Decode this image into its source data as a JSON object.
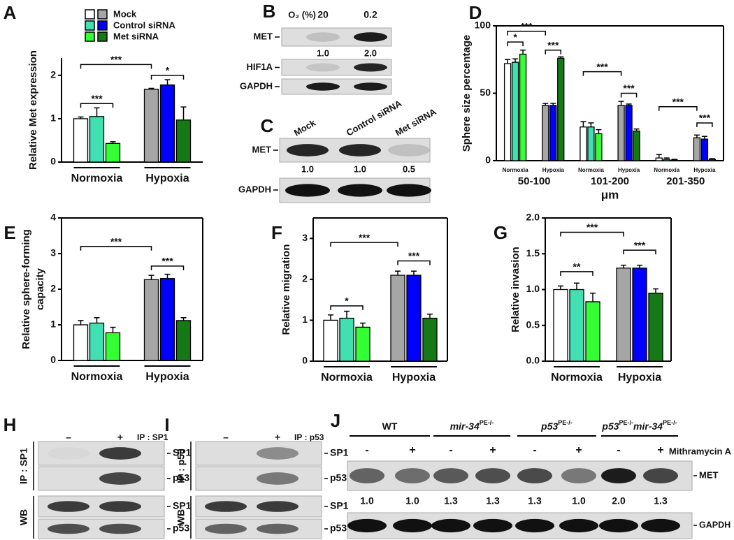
{
  "chart_data": [
    {
      "type": "bar",
      "panel": "A",
      "ylabel": "Relative Met expression",
      "categories": [
        "Normoxia",
        "Hypoxia"
      ],
      "series": [
        {
          "name": "Mock",
          "colors": [
            "#ffffff",
            "#a6a6a6"
          ],
          "values": [
            1.0,
            1.68
          ],
          "errors": [
            0.04,
            0.02
          ]
        },
        {
          "name": "Control siRNA",
          "colors": [
            "#40e0b0",
            "#0000ff"
          ],
          "values": [
            1.05,
            1.78
          ],
          "errors": [
            0.2,
            0.12
          ]
        },
        {
          "name": "Met siRNA",
          "colors": [
            "#33ff33",
            "#157a15"
          ],
          "values": [
            0.43,
            0.97
          ],
          "errors": [
            0.04,
            0.3
          ]
        }
      ],
      "ylim": [
        0,
        2.4
      ],
      "yticks": [
        0,
        1,
        2
      ],
      "annotations": [
        "***",
        "***",
        "*"
      ],
      "legend": "top"
    },
    {
      "type": "bar",
      "panel": "D",
      "ylabel": "Sphere size percentage",
      "categories": [
        "Normoxia",
        "Hypoxia",
        "Normoxia",
        "Hypoxia",
        "Normoxia",
        "Hypoxia"
      ],
      "group_labels": [
        "50-100",
        "101-200",
        "201-350"
      ],
      "xlabel": "μm",
      "series": [
        {
          "colors": [
            "#ffffff",
            "#a6a6a6",
            "#ffffff",
            "#a6a6a6",
            "#ffffff",
            "#a6a6a6"
          ],
          "values": [
            72,
            41,
            25,
            41,
            2,
            17
          ],
          "errors": [
            3,
            1.5,
            4,
            3,
            2.5,
            2
          ]
        },
        {
          "colors": [
            "#40e0b0",
            "#0000ff",
            "#40e0b0",
            "#0000ff",
            "#40e0b0",
            "#0000ff"
          ],
          "values": [
            73,
            41,
            25,
            41,
            1,
            16
          ],
          "errors": [
            2.5,
            1.5,
            3,
            1,
            1,
            2
          ]
        },
        {
          "colors": [
            "#33ff33",
            "#157a15",
            "#33ff33",
            "#157a15",
            "#33ff33",
            "#157a15"
          ],
          "values": [
            79,
            76,
            20,
            22,
            0.5,
            1
          ],
          "errors": [
            3,
            1,
            3,
            1.5,
            0.5,
            0.5
          ]
        }
      ],
      "ylim": [
        0,
        100
      ],
      "yticks": [
        0,
        50,
        100
      ],
      "annotations": [
        "***",
        "*",
        "***",
        "***",
        "***",
        "***",
        "***"
      ]
    },
    {
      "type": "bar",
      "panel": "E",
      "ylabel": [
        "Relative sphere-forming",
        "capacity"
      ],
      "categories": [
        "Normoxia",
        "Hypoxia"
      ],
      "series": [
        {
          "colors": [
            "#ffffff",
            "#a6a6a6"
          ],
          "values": [
            1.0,
            2.27
          ],
          "errors": [
            0.12,
            0.12
          ]
        },
        {
          "colors": [
            "#40e0b0",
            "#0000ff"
          ],
          "values": [
            1.05,
            2.3
          ],
          "errors": [
            0.15,
            0.12
          ]
        },
        {
          "colors": [
            "#33ff33",
            "#157a15"
          ],
          "values": [
            0.78,
            1.12
          ],
          "errors": [
            0.15,
            0.08
          ]
        }
      ],
      "ylim": [
        0,
        4
      ],
      "yticks": [
        0,
        1,
        2,
        3,
        4
      ],
      "annotations": [
        "***",
        "***"
      ]
    },
    {
      "type": "bar",
      "panel": "F",
      "ylabel": "Relative migration",
      "categories": [
        "Normoxia",
        "Hypoxia"
      ],
      "series": [
        {
          "colors": [
            "#ffffff",
            "#a6a6a6"
          ],
          "values": [
            1.0,
            2.1
          ],
          "errors": [
            0.13,
            0.1
          ]
        },
        {
          "colors": [
            "#40e0b0",
            "#0000ff"
          ],
          "values": [
            1.05,
            2.1
          ],
          "errors": [
            0.17,
            0.1
          ]
        },
        {
          "colors": [
            "#33ff33",
            "#157a15"
          ],
          "values": [
            0.83,
            1.05
          ],
          "errors": [
            0.1,
            0.1
          ]
        }
      ],
      "ylim": [
        0,
        3.5
      ],
      "yticks": [
        0,
        1,
        2,
        3
      ],
      "annotations": [
        "*",
        "***",
        "***"
      ]
    },
    {
      "type": "bar",
      "panel": "G",
      "ylabel": "Relative invasion",
      "categories": [
        "Normoxia",
        "Hypoxia"
      ],
      "series": [
        {
          "colors": [
            "#ffffff",
            "#a6a6a6"
          ],
          "values": [
            1.0,
            1.3
          ],
          "errors": [
            0.05,
            0.04
          ]
        },
        {
          "colors": [
            "#40e0b0",
            "#0000ff"
          ],
          "values": [
            1.0,
            1.3
          ],
          "errors": [
            0.09,
            0.04
          ]
        },
        {
          "colors": [
            "#33ff33",
            "#157a15"
          ],
          "values": [
            0.83,
            0.95
          ],
          "errors": [
            0.12,
            0.06
          ]
        }
      ],
      "ylim": [
        0,
        2
      ],
      "yticks": [
        {
          "value": 0,
          "label": "0.0"
        },
        0.5,
        {
          "value": 1,
          "label": "1.0"
        },
        1.5,
        {
          "value": 2,
          "label": "2.0"
        }
      ],
      "annotations": [
        "**",
        "***",
        "***"
      ]
    }
  ],
  "blots": {
    "B": {
      "panel": "B",
      "header": "O₂ (%)",
      "lanes": [
        "20",
        "0.2"
      ],
      "rows": [
        "MET",
        "HIF1A",
        "GAPDH"
      ],
      "ratios": [
        "1.0",
        "2.0"
      ]
    },
    "C": {
      "panel": "C",
      "lanes": [
        "Mock",
        "Control siRNA",
        "Met siRNA"
      ],
      "rows": [
        "MET",
        "GAPDH"
      ],
      "ratios": [
        "1.0",
        "1.0",
        "0.5"
      ]
    },
    "H": {
      "panel": "H",
      "lanes": [
        "–",
        "+"
      ],
      "ip": "IP : SP1",
      "side": [
        "IP : SP1",
        "WB"
      ],
      "rows": [
        "SP1",
        "p53",
        "SP1",
        "p53"
      ]
    },
    "I": {
      "panel": "I",
      "lanes": [
        "–",
        "+"
      ],
      "ip": "IP : p53",
      "side": [
        "IP : p53",
        "WB"
      ],
      "rows": [
        "SP1",
        "p53",
        "SP1",
        "p53"
      ]
    },
    "J": {
      "panel": "J",
      "groups": [
        [
          {
            "text": "WT"
          }
        ],
        [
          {
            "text": "mir-34",
            "italic": true
          },
          {
            "text": "PE-/-",
            "sup": true
          }
        ],
        [
          {
            "text": "p53",
            "italic": true
          },
          {
            "text": "PE-/-",
            "sup": true
          }
        ],
        [
          {
            "text": "p53",
            "italic": true
          },
          {
            "text": "PE-/-",
            "sup": true
          },
          {
            "text": "mir-34",
            "italic": true
          },
          {
            "text": "PE-/-",
            "sup": true
          }
        ]
      ],
      "lanes": [
        "-",
        "+",
        "-",
        "+",
        "-",
        "+",
        "-",
        "+"
      ],
      "treatment": "Mithramycin A",
      "rows": [
        "MET",
        "GAPDH"
      ],
      "ratios": [
        "1.0",
        "1.0",
        "1.3",
        "1.3",
        "1.3",
        "1.0",
        "2.0",
        "1.3"
      ]
    }
  }
}
